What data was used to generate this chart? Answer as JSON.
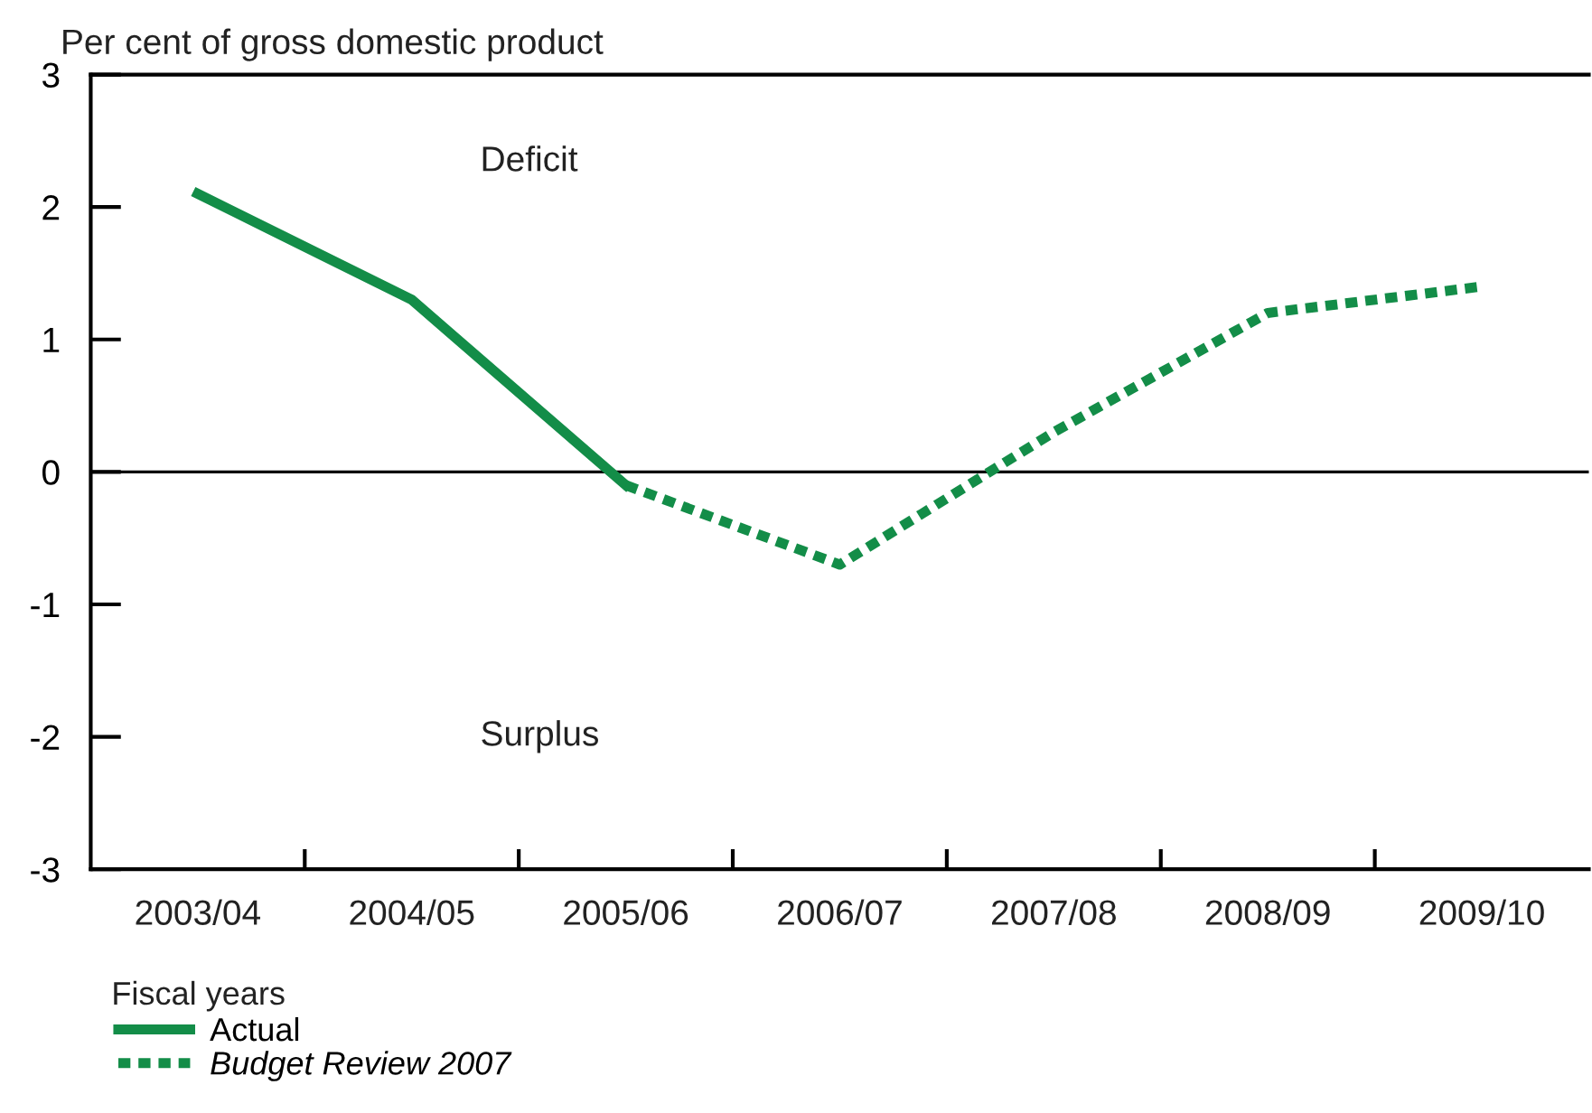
{
  "chart_data": {
    "type": "line",
    "ylabel": "Per cent of gross domestic product",
    "xlabel": "Fiscal years",
    "categories": [
      "2003/04",
      "2004/05",
      "2005/06",
      "2006/07",
      "2007/08",
      "2008/09",
      "2009/10"
    ],
    "series": [
      {
        "name": "Actual",
        "color": "#138d48",
        "line_style": "solid",
        "values": [
          2.1,
          1.3,
          -0.1,
          null,
          null,
          null,
          null
        ]
      },
      {
        "name": "Budget Review 2007",
        "color": "#138d48",
        "line_style": "dotted",
        "values": [
          null,
          null,
          -0.1,
          -0.7,
          0.3,
          1.2,
          1.4
        ]
      }
    ],
    "ylim": [
      -3,
      3
    ],
    "yticks": [
      -3,
      -2,
      -1,
      0,
      1,
      2,
      3
    ],
    "ref_lines": [
      {
        "axis": "y",
        "value": 0,
        "color": "#000000"
      }
    ],
    "annotations": [
      "Deficit",
      "Surplus"
    ],
    "grid": false,
    "legend": "bottom left"
  }
}
